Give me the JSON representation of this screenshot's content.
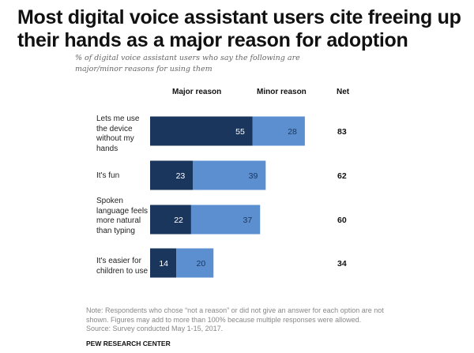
{
  "chart_data": {
    "type": "bar",
    "orientation": "horizontal",
    "stacked": true,
    "title": "Most digital voice assistant users cite freeing up their hands as a major reason for adoption",
    "subtitle": "% of digital voice assistant users who say the following are major/minor reasons for using them",
    "categories": [
      "Lets me use the device without my hands",
      "It's fun",
      "Spoken language feels more natural than typing",
      "It's easier for children to use"
    ],
    "series": [
      {
        "name": "Major reason",
        "color": "#1b365d",
        "label_color": "#ffffff",
        "values": [
          55,
          23,
          22,
          14
        ]
      },
      {
        "name": "Minor reason",
        "color": "#5b8fd0",
        "label_color": "#1b365d",
        "values": [
          28,
          39,
          37,
          20
        ]
      }
    ],
    "net": {
      "name": "Net",
      "values": [
        83,
        62,
        60,
        34
      ]
    },
    "xlim": [
      0,
      100
    ],
    "grid": false,
    "legend": "top (column headers)"
  },
  "labels": {
    "major_header": "Major reason",
    "minor_header": "Minor reason",
    "net_header": "Net",
    "cat0": "Lets me use the device without my hands",
    "cat1": "It's fun",
    "cat2": "Spoken language feels more natural than typing",
    "cat3": "It's easier for children to use"
  },
  "footer": {
    "note": "Note: Respondents who chose “not a reason” or did not give an answer for each option are not shown. Figures may add to more than 100% because multiple responses were allowed.",
    "source": "Source: Survey conducted May 1-15, 2017.",
    "org": "PEW RESEARCH CENTER"
  }
}
